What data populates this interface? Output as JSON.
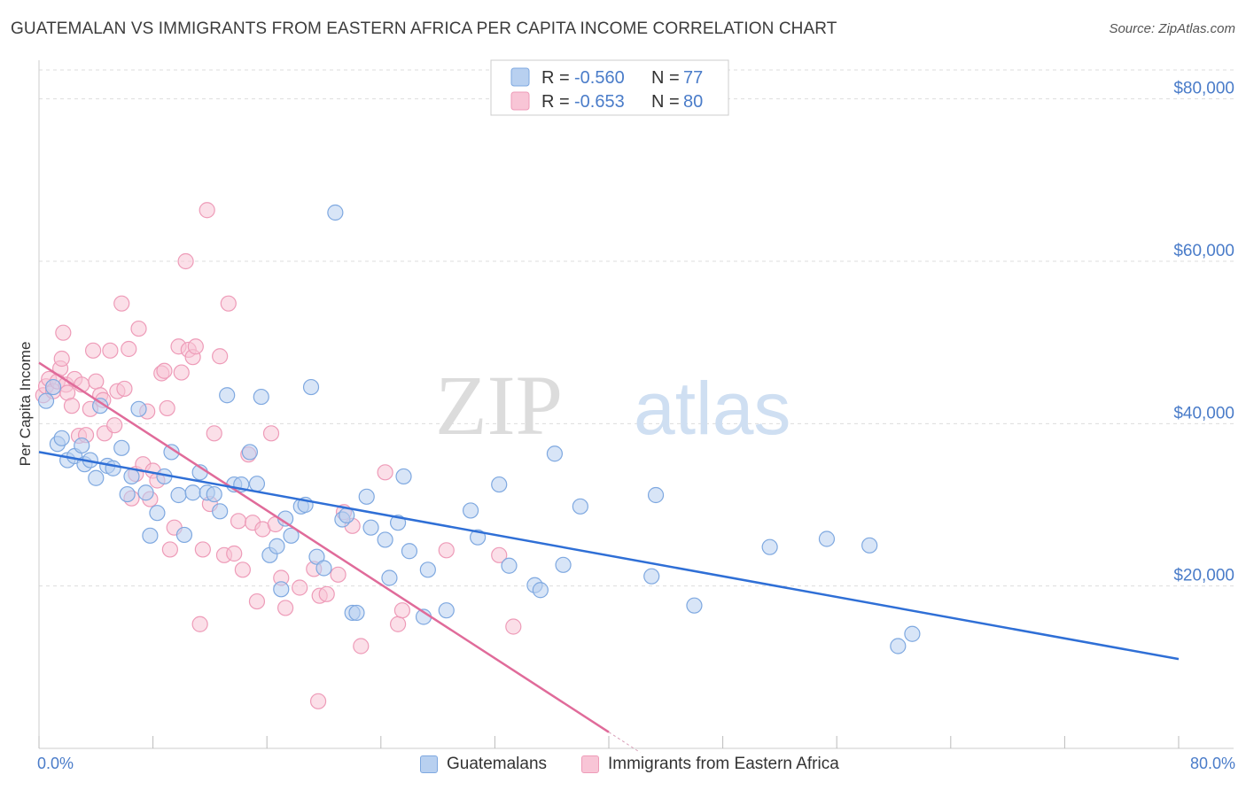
{
  "title": "GUATEMALAN VS IMMIGRANTS FROM EASTERN AFRICA PER CAPITA INCOME CORRELATION CHART",
  "source": "Source: ZipAtlas.com",
  "watermark": {
    "zip": "ZIP",
    "atlas": "atlas"
  },
  "colors": {
    "blue_fill": "#b8d0f0",
    "blue_stroke": "#7ea8e0",
    "blue_line": "#2f6fd6",
    "pink_fill": "#f8c5d6",
    "pink_stroke": "#ee9bb8",
    "pink_line": "#e06b9a",
    "axis_text": "#4a7cc9",
    "grid": "#dddddd"
  },
  "legend_top": [
    {
      "r_label": "R = ",
      "r_value": "-0.560",
      "n_label": "N = ",
      "n_value": "77",
      "color": "blue"
    },
    {
      "r_label": "R = ",
      "r_value": "-0.653",
      "n_label": "N = ",
      "n_value": "80",
      "color": "pink"
    }
  ],
  "legend_bottom": [
    {
      "label": "Guatemalans",
      "color": "blue"
    },
    {
      "label": "Immigrants from Eastern Africa",
      "color": "pink"
    }
  ],
  "chart_data": {
    "type": "scatter",
    "title": "GUATEMALAN VS IMMIGRANTS FROM EASTERN AFRICA PER CAPITA INCOME CORRELATION CHART",
    "xlabel": "",
    "ylabel": "Per Capita Income",
    "xlim": [
      0,
      80
    ],
    "ylim": [
      0,
      84000
    ],
    "x_tick_labels": {
      "left": "0.0%",
      "right": "80.0%"
    },
    "y_ticks": [
      {
        "value": 20000,
        "label": "$20,000"
      },
      {
        "value": 40000,
        "label": "$40,000"
      },
      {
        "value": 60000,
        "label": "$60,000"
      },
      {
        "value": 80000,
        "label": "$80,000"
      }
    ],
    "grid": "horizontal dashed",
    "legend_placement": "top-center",
    "series": [
      {
        "name": "Guatemalans",
        "color": "blue",
        "trend": {
          "x": [
            0,
            80
          ],
          "y": [
            36500,
            11000
          ]
        },
        "points": [
          [
            0.5,
            42800
          ],
          [
            1.0,
            44500
          ],
          [
            1.3,
            37500
          ],
          [
            1.6,
            38200
          ],
          [
            2.0,
            35500
          ],
          [
            2.5,
            36000
          ],
          [
            3.0,
            37300
          ],
          [
            3.2,
            35000
          ],
          [
            3.6,
            35500
          ],
          [
            4.0,
            33300
          ],
          [
            4.3,
            42200
          ],
          [
            4.8,
            34800
          ],
          [
            5.2,
            34500
          ],
          [
            5.8,
            37000
          ],
          [
            6.2,
            31300
          ],
          [
            6.5,
            33500
          ],
          [
            7.0,
            41800
          ],
          [
            7.5,
            31500
          ],
          [
            7.8,
            26200
          ],
          [
            8.3,
            29000
          ],
          [
            8.8,
            33500
          ],
          [
            9.3,
            36500
          ],
          [
            9.8,
            31200
          ],
          [
            10.2,
            26300
          ],
          [
            10.8,
            31500
          ],
          [
            11.3,
            34000
          ],
          [
            11.8,
            31500
          ],
          [
            12.3,
            31300
          ],
          [
            12.7,
            29200
          ],
          [
            13.2,
            43500
          ],
          [
            13.7,
            32500
          ],
          [
            14.2,
            32500
          ],
          [
            14.8,
            36500
          ],
          [
            15.3,
            32600
          ],
          [
            15.6,
            43300
          ],
          [
            16.2,
            23800
          ],
          [
            16.7,
            24900
          ],
          [
            17.0,
            19600
          ],
          [
            17.3,
            28300
          ],
          [
            17.7,
            26200
          ],
          [
            18.4,
            29800
          ],
          [
            18.7,
            30000
          ],
          [
            19.1,
            44500
          ],
          [
            19.5,
            23600
          ],
          [
            20.0,
            22200
          ],
          [
            20.8,
            66000
          ],
          [
            21.3,
            28200
          ],
          [
            21.6,
            28700
          ],
          [
            22.0,
            16700
          ],
          [
            22.3,
            16700
          ],
          [
            23.0,
            31000
          ],
          [
            23.3,
            27200
          ],
          [
            24.3,
            25700
          ],
          [
            24.6,
            21000
          ],
          [
            25.2,
            27800
          ],
          [
            25.6,
            33500
          ],
          [
            26.0,
            24300
          ],
          [
            27.0,
            16200
          ],
          [
            27.3,
            22000
          ],
          [
            28.6,
            17000
          ],
          [
            30.3,
            29300
          ],
          [
            30.8,
            26000
          ],
          [
            32.3,
            32500
          ],
          [
            33.0,
            22500
          ],
          [
            34.8,
            20100
          ],
          [
            35.2,
            19500
          ],
          [
            36.2,
            36300
          ],
          [
            36.8,
            22600
          ],
          [
            38.0,
            29800
          ],
          [
            43.0,
            21200
          ],
          [
            43.3,
            31200
          ],
          [
            46.0,
            17600
          ],
          [
            51.3,
            24800
          ],
          [
            55.3,
            25800
          ],
          [
            58.3,
            25000
          ],
          [
            60.3,
            12600
          ],
          [
            61.3,
            14100
          ]
        ]
      },
      {
        "name": "Immigrants from Eastern Africa",
        "color": "pink",
        "trend": {
          "x": [
            0,
            40
          ],
          "y": [
            47500,
            2000
          ]
        },
        "points": [
          [
            0.3,
            43500
          ],
          [
            0.5,
            44600
          ],
          [
            0.7,
            45500
          ],
          [
            1.0,
            44000
          ],
          [
            1.3,
            45200
          ],
          [
            1.5,
            46800
          ],
          [
            1.6,
            48000
          ],
          [
            1.7,
            51200
          ],
          [
            1.9,
            44800
          ],
          [
            2.0,
            43800
          ],
          [
            2.3,
            42200
          ],
          [
            2.5,
            45500
          ],
          [
            2.8,
            38500
          ],
          [
            3.0,
            44800
          ],
          [
            3.3,
            38600
          ],
          [
            3.6,
            41800
          ],
          [
            3.8,
            49000
          ],
          [
            4.0,
            45200
          ],
          [
            4.3,
            43500
          ],
          [
            4.5,
            42900
          ],
          [
            4.6,
            38800
          ],
          [
            5.0,
            49000
          ],
          [
            5.3,
            39800
          ],
          [
            5.5,
            44000
          ],
          [
            5.8,
            54800
          ],
          [
            6.0,
            44300
          ],
          [
            6.3,
            49200
          ],
          [
            6.5,
            30800
          ],
          [
            6.8,
            33800
          ],
          [
            7.0,
            51700
          ],
          [
            7.3,
            35000
          ],
          [
            7.6,
            41500
          ],
          [
            7.8,
            30700
          ],
          [
            8.0,
            34200
          ],
          [
            8.3,
            33000
          ],
          [
            8.6,
            46200
          ],
          [
            8.8,
            46500
          ],
          [
            9.0,
            41900
          ],
          [
            9.2,
            24500
          ],
          [
            9.5,
            27200
          ],
          [
            9.8,
            49500
          ],
          [
            10.0,
            46300
          ],
          [
            10.3,
            60000
          ],
          [
            10.5,
            49100
          ],
          [
            10.8,
            48200
          ],
          [
            11.0,
            49500
          ],
          [
            11.3,
            15300
          ],
          [
            11.5,
            24500
          ],
          [
            11.8,
            66300
          ],
          [
            12.0,
            30100
          ],
          [
            12.3,
            38800
          ],
          [
            12.7,
            48300
          ],
          [
            13.0,
            23800
          ],
          [
            13.3,
            54800
          ],
          [
            13.7,
            24000
          ],
          [
            14.0,
            28000
          ],
          [
            14.3,
            22000
          ],
          [
            14.7,
            36200
          ],
          [
            15.0,
            27800
          ],
          [
            15.3,
            18100
          ],
          [
            15.7,
            27000
          ],
          [
            16.3,
            38800
          ],
          [
            16.6,
            27600
          ],
          [
            17.0,
            21000
          ],
          [
            17.3,
            17300
          ],
          [
            18.3,
            19800
          ],
          [
            19.3,
            22100
          ],
          [
            19.7,
            18800
          ],
          [
            20.2,
            19000
          ],
          [
            21.0,
            21400
          ],
          [
            21.4,
            29100
          ],
          [
            22.0,
            27400
          ],
          [
            22.6,
            12600
          ],
          [
            24.3,
            34000
          ],
          [
            25.2,
            15300
          ],
          [
            25.5,
            17000
          ],
          [
            32.3,
            23800
          ],
          [
            33.3,
            15000
          ],
          [
            19.6,
            5800
          ],
          [
            28.6,
            24400
          ]
        ]
      }
    ]
  }
}
